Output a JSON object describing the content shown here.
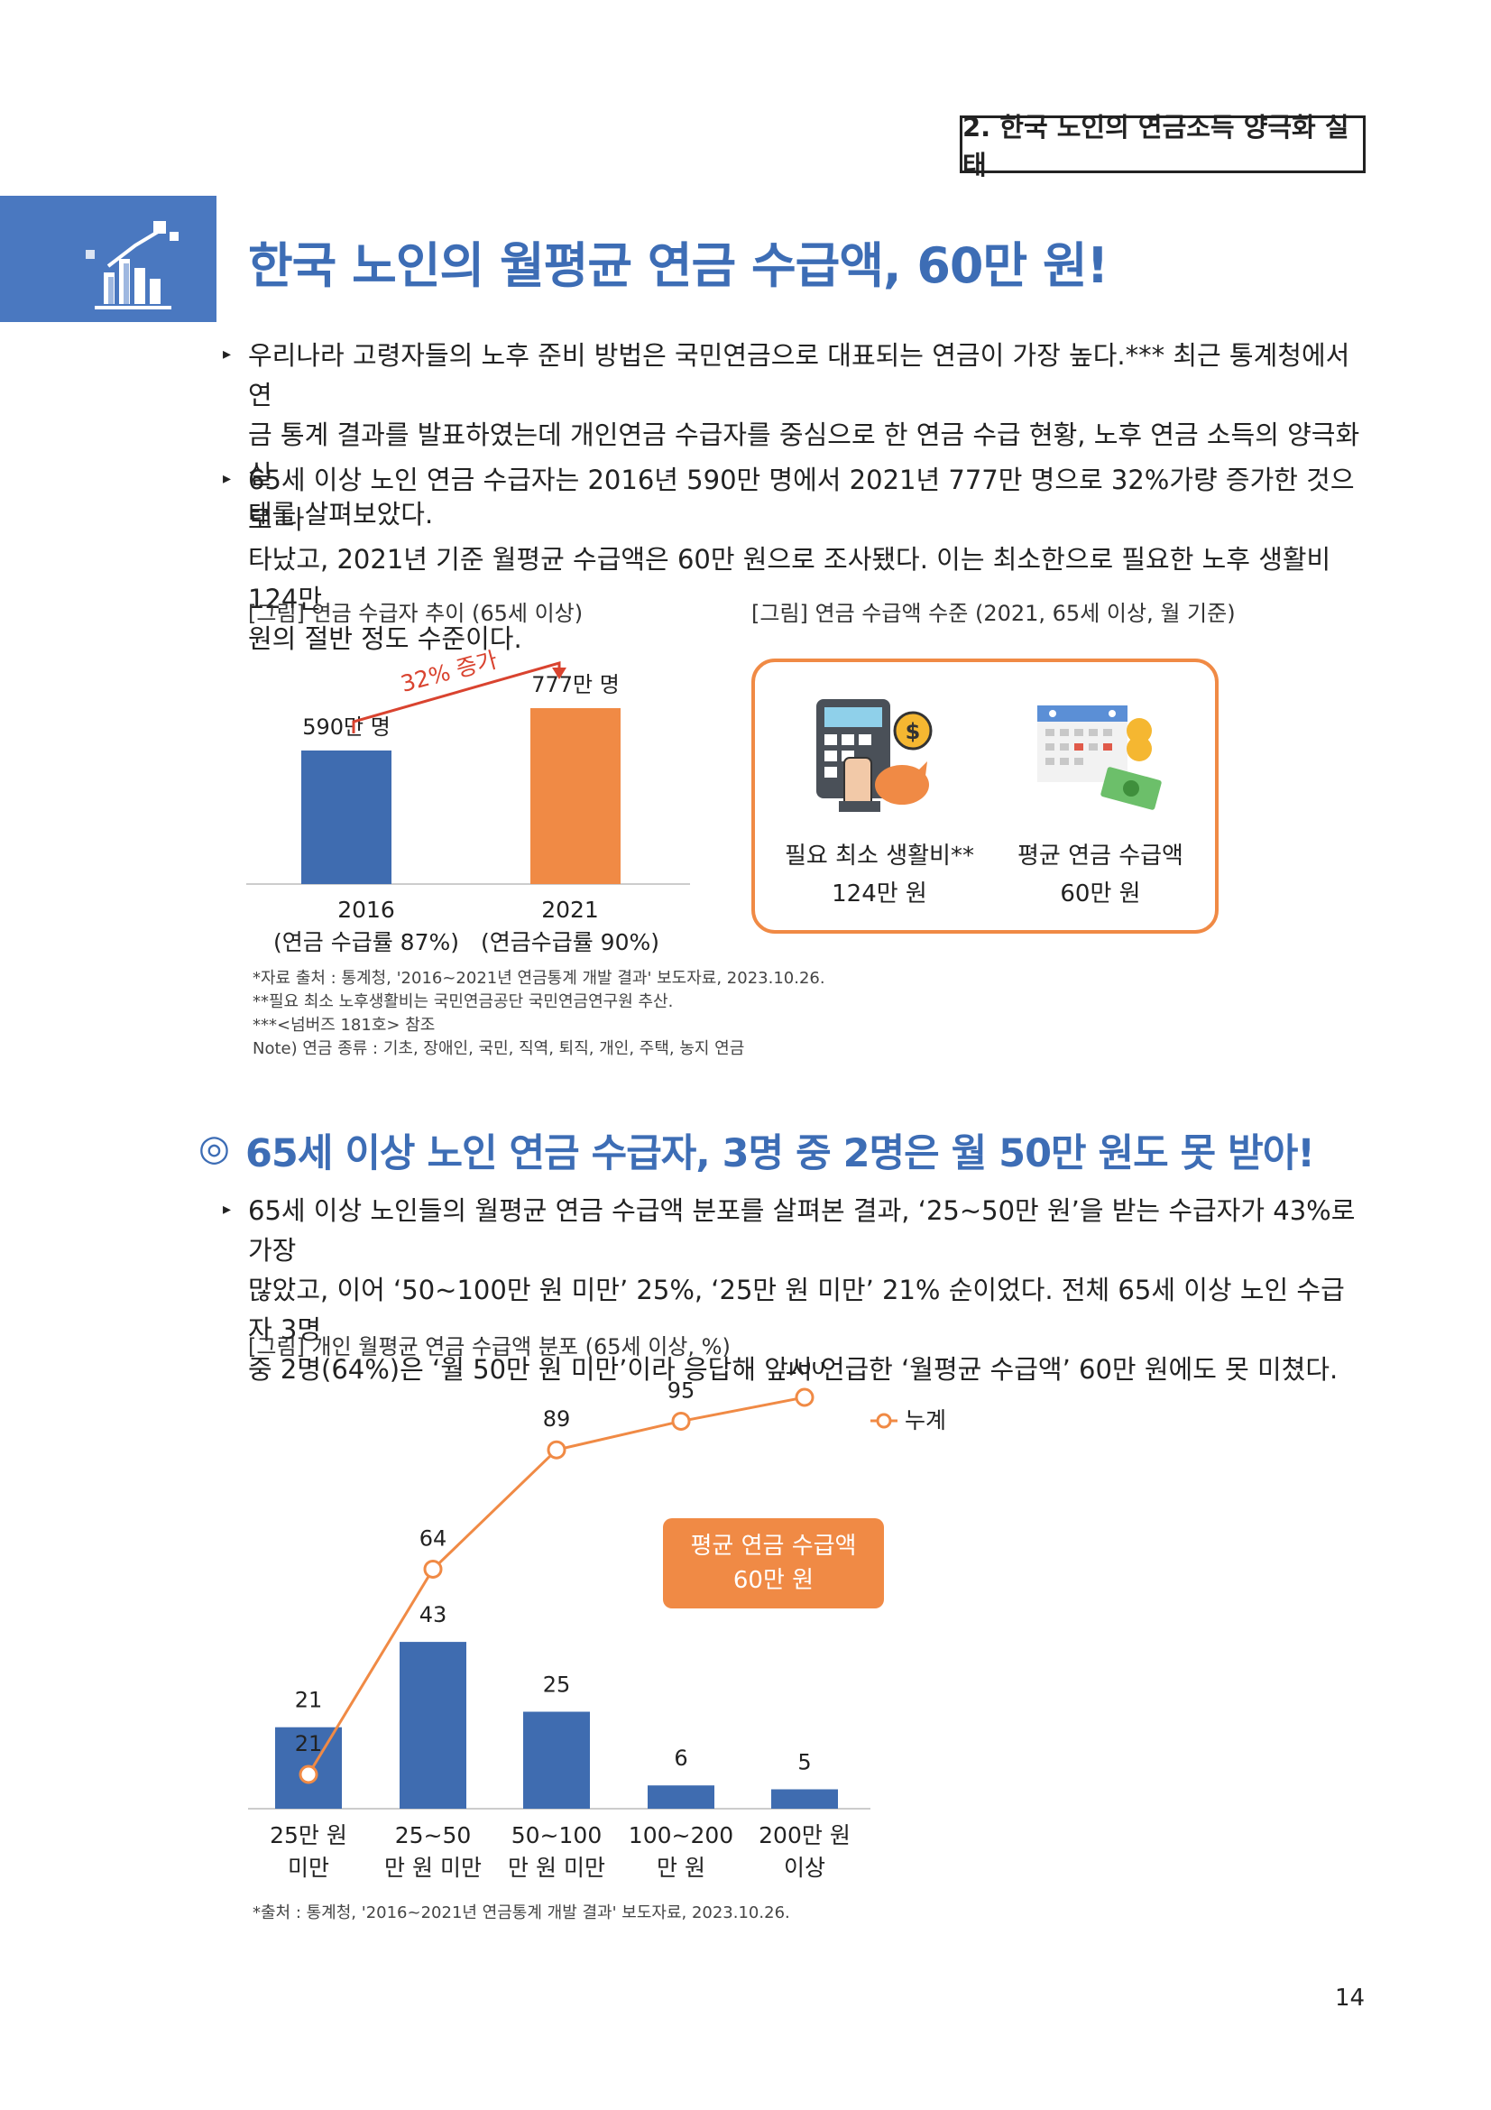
{
  "header": {
    "section_label": "2. 한국 노인의 연금소득 양극화 실태"
  },
  "title": "한국 노인의 월평균 연금 수급액, 60만 원!",
  "paragraphs": [
    [
      "우리나라 고령자들의 노후 준비 방법은 국민연금으로 대표되는 연금이 가장 높다.*** 최근 통계청에서 연",
      "금 통계 결과를 발표하였는데 개인연금 수급자를 중심으로 한 연금 수급 현황, 노후 연금 소득의 양극화 실",
      "태를 살펴보았다."
    ],
    [
      "65세 이상 노인 연금 수급자는 2016년 590만 명에서 2021년 777만 명으로 32%가량 증가한 것으로 나",
      "타났고, 2021년 기준 월평균 수급액은 60만 원으로 조사됐다. 이는 최소한으로 필요한 노후 생활비 124만",
      "원의 절반 정도 수준이다."
    ]
  ],
  "figure1": {
    "caption": "[그림] 연금 수급자 추이 (65세 이상)",
    "increase_label": "32% 증가",
    "bar_labels": [
      "590만 명",
      "777만 명"
    ],
    "years": [
      "2016",
      "2021"
    ],
    "rates": [
      "(연금 수급률 87%)",
      "(연금수급률 90%)"
    ]
  },
  "figure2": {
    "caption": "[그림] 연금 수급액 수준 (2021, 65세 이상, 월 기준)",
    "item1_label": "필요 최소 생활비**",
    "item1_value": "124만 원",
    "item2_label": "평균 연금 수급액",
    "item2_value": "60만 원"
  },
  "notes": [
    "*자료 출처 : 통계청, '2016~2021년 연금통계 개발 결과' 보도자료, 2023.10.26.",
    "**필요 최소 노후생활비는 국민연금공단 국민연금연구원 추산.",
    "***<넘버즈 181호> 참조",
    "Note) 연금 종류 : 기초, 장애인, 국민, 직역, 퇴직, 개인, 주택, 농지 연금"
  ],
  "subtitle": "65세 이상 노인 연금 수급자, 3명 중 2명은 월 50만 원도 못 받아!",
  "subtitle_icon": "◎",
  "paragraph3": [
    "65세 이상 노인들의 월평균 연금 수급액 분포를 살펴본 결과, ‘25~50만 원’을 받는 수급자가 43%로 가장",
    "많았고, 이어 ‘50~100만 원 미만’ 25%, ‘25만 원 미만’ 21% 순이었다. 전체 65세 이상 노인 수급자 3명",
    "중 2명(64%)은 ‘월 50만 원 미만’이라 응답해 앞서 언급한 ‘월평균 수급액’ 60만 원에도 못 미쳤다."
  ],
  "figure3": {
    "caption": "[그림] 개인 월평균 연금 수급액 분포 (65세 이상, %)",
    "callout_line1": "평균 연금 수급액",
    "callout_line2": "60만 원",
    "source": "*출처 : 통계청, '2016~2021년 연금통계 개발 결과' 보도자료, 2023.10.26."
  },
  "chart_data": [
    {
      "type": "bar",
      "categories": [
        "2016",
        "2021"
      ],
      "values": [
        590,
        777
      ],
      "value_labels": [
        "590만 명",
        "777만 명"
      ],
      "ylabel": "",
      "colors": [
        "#3f6cb0",
        "#f08a45"
      ]
    },
    {
      "type": "bar",
      "categories": [
        "25만 원 미만",
        "25~50 만 원 미만",
        "50~100 만 원 미만",
        "100~200 만 원",
        "200만 원 이상"
      ],
      "category_lines": [
        [
          "25만 원",
          "미만"
        ],
        [
          "25~50",
          "만 원 미만"
        ],
        [
          "50~100",
          "만 원 미만"
        ],
        [
          "100~200",
          "만 원"
        ],
        [
          "200만 원",
          "이상"
        ]
      ],
      "series": [
        {
          "values": [
            21,
            43,
            25,
            6,
            5
          ],
          "color": "#3f6cb0"
        },
        {
          "name": "누계",
          "type": "line",
          "values": [
            21,
            64,
            89,
            95,
            100
          ],
          "color": "#f08a45"
        }
      ],
      "ylim": [
        0,
        100
      ]
    }
  ],
  "page_number": "14"
}
